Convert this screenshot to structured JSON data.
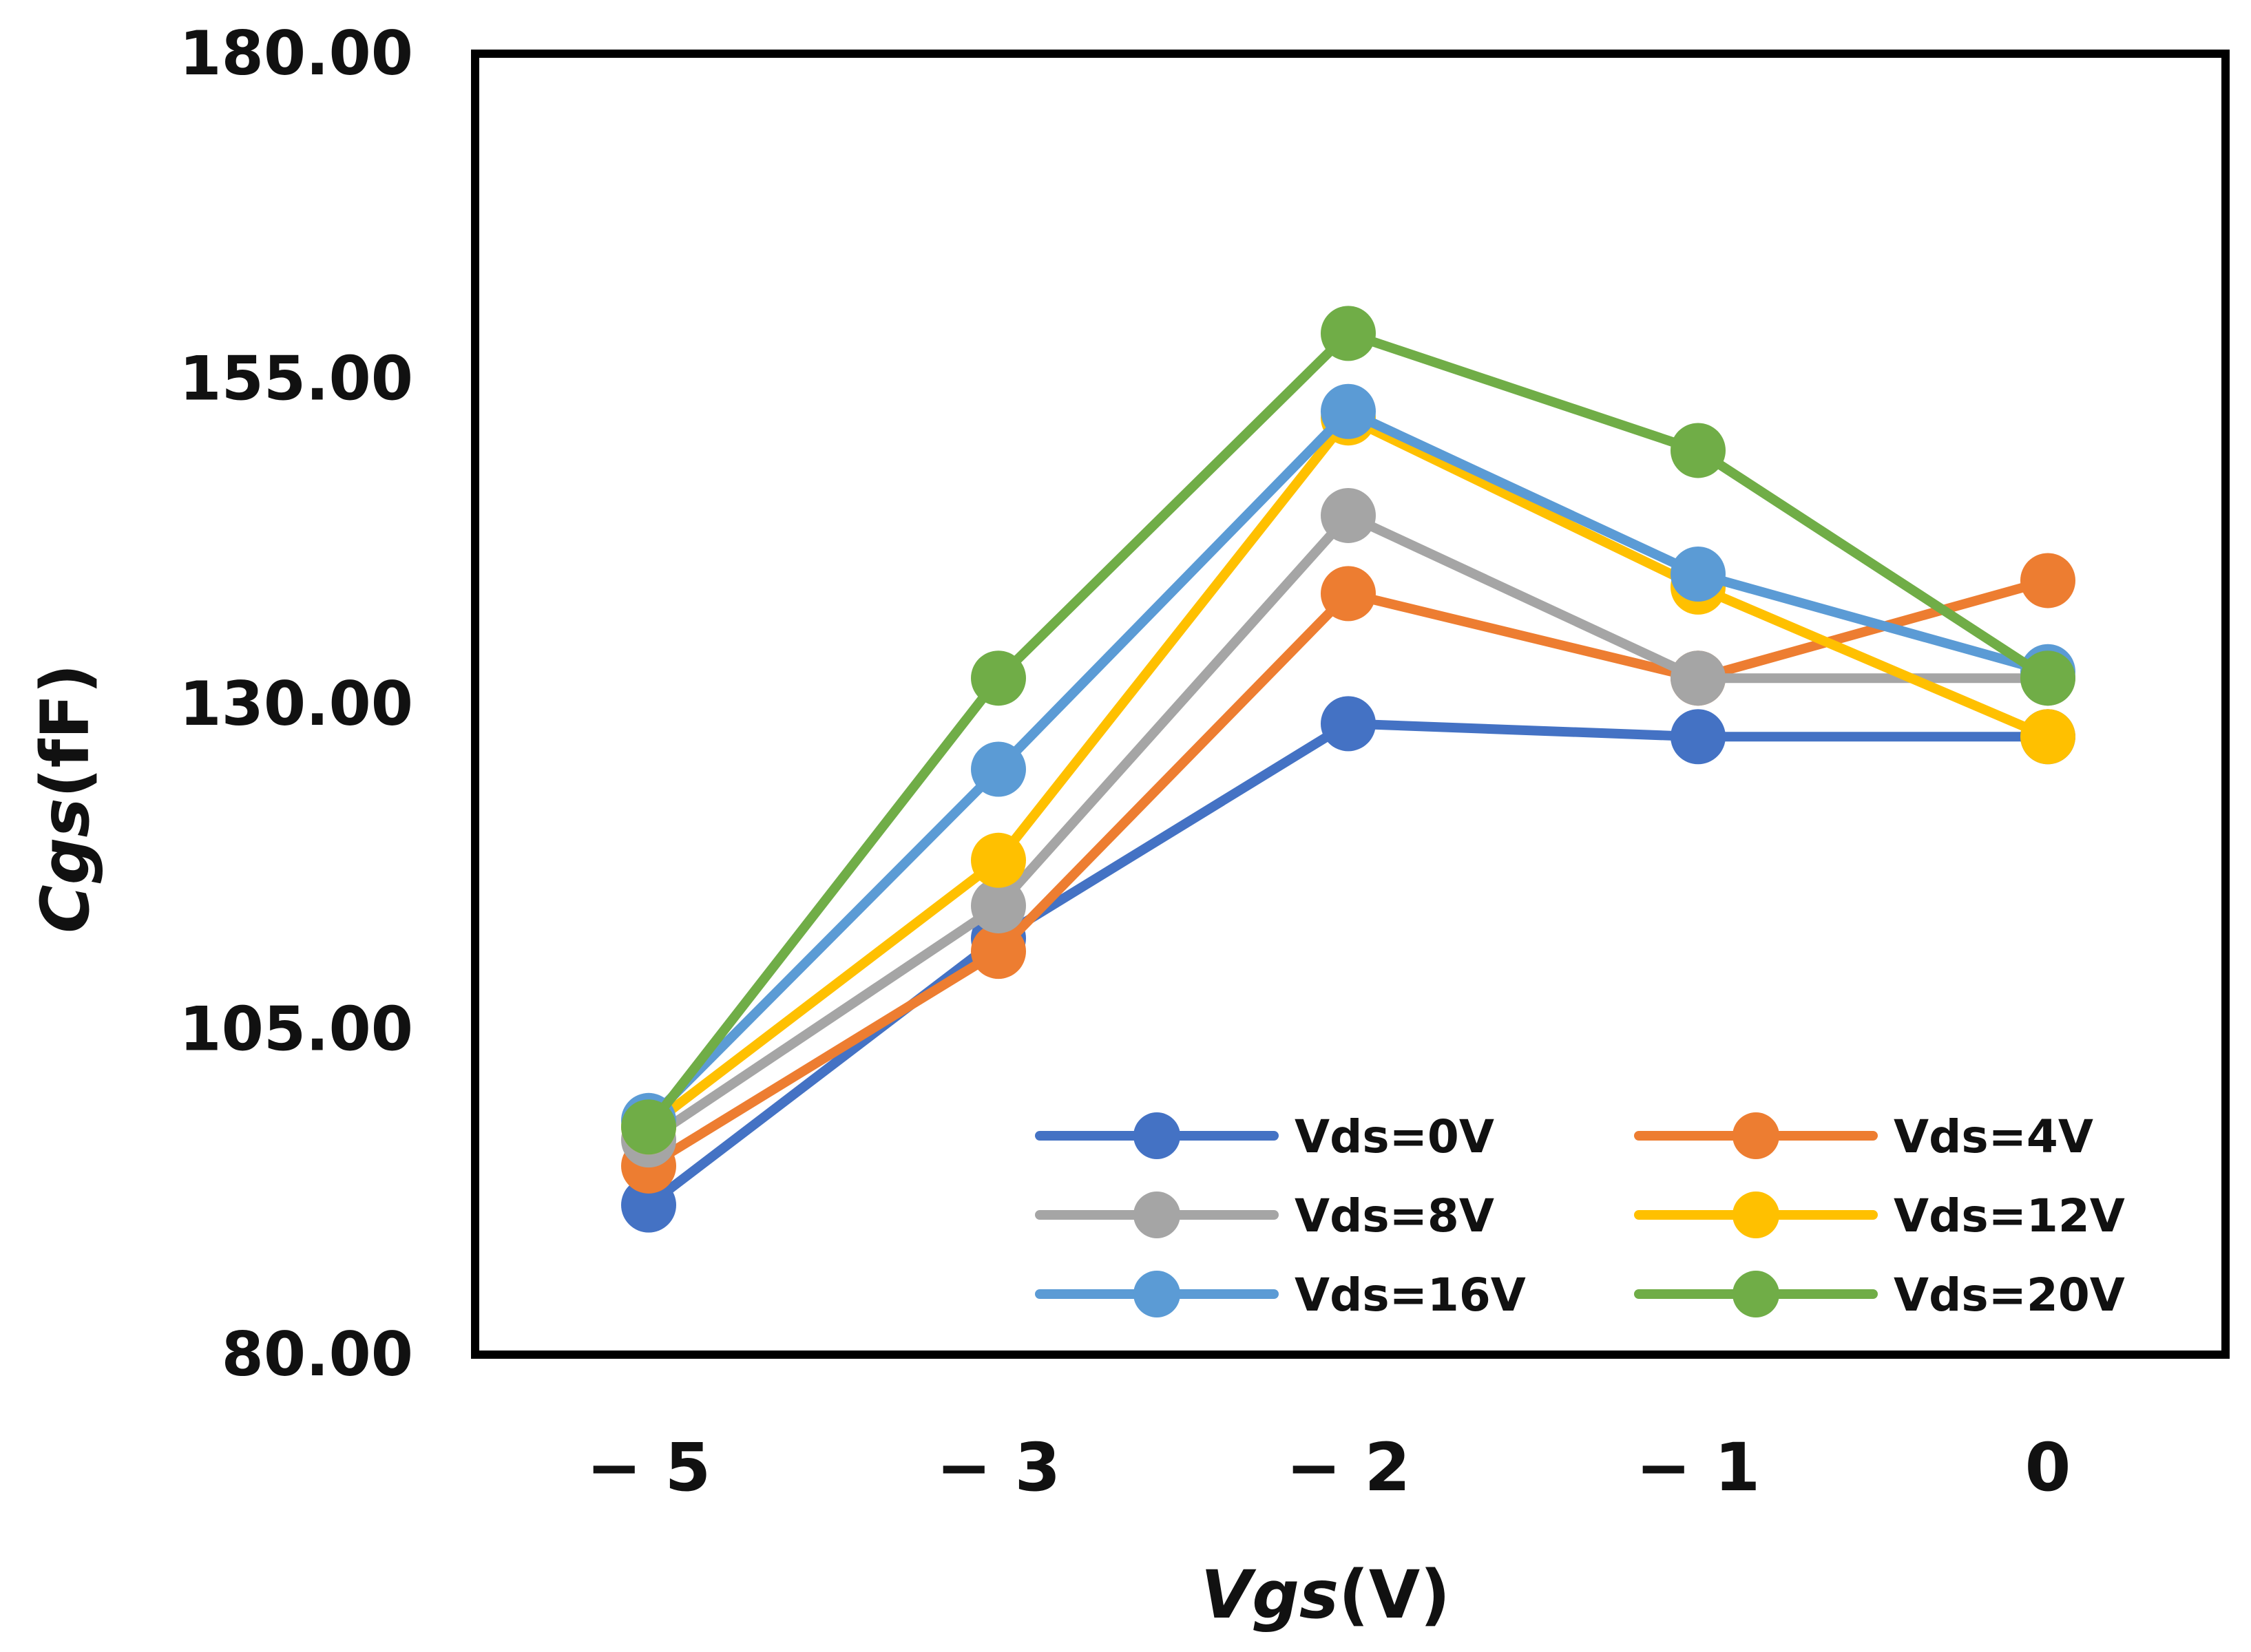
{
  "chart_data": {
    "type": "line",
    "title": "",
    "xlabel": {
      "italic": "Vgs",
      "unit": "(V)"
    },
    "ylabel": {
      "italic": "Cgs",
      "unit": "(fF)"
    },
    "ylim": [
      80,
      180
    ],
    "yticks": [
      "180.00",
      "155.00",
      "130.00",
      "105.00",
      "80.00"
    ],
    "ytick_values": [
      180,
      155,
      130,
      105,
      80
    ],
    "categories": [
      "− 5",
      "− 3",
      "− 2",
      "− 1",
      "0"
    ],
    "grid": false,
    "legend_position": "bottom-right",
    "series": [
      {
        "name": "Vds=0V",
        "color": "#4472C4",
        "values": [
          91.5,
          112.0,
          128.5,
          127.5,
          127.5
        ]
      },
      {
        "name": "Vds=4V",
        "color": "#ED7D31",
        "values": [
          94.5,
          111.0,
          138.5,
          132.0,
          139.5
        ]
      },
      {
        "name": "Vds=8V",
        "color": "#A5A5A5",
        "values": [
          96.5,
          114.5,
          144.5,
          132.0,
          132.0
        ]
      },
      {
        "name": "Vds=12V",
        "color": "#FFC000",
        "values": [
          97.5,
          118.0,
          152.0,
          139.0,
          127.5
        ]
      },
      {
        "name": "Vds=16V",
        "color": "#5B9BD5",
        "values": [
          98.0,
          125.0,
          152.5,
          140.0,
          132.5
        ]
      },
      {
        "name": "Vds=20V",
        "color": "#70AD47",
        "values": [
          97.5,
          132.0,
          158.5,
          149.5,
          132.0
        ]
      }
    ]
  }
}
